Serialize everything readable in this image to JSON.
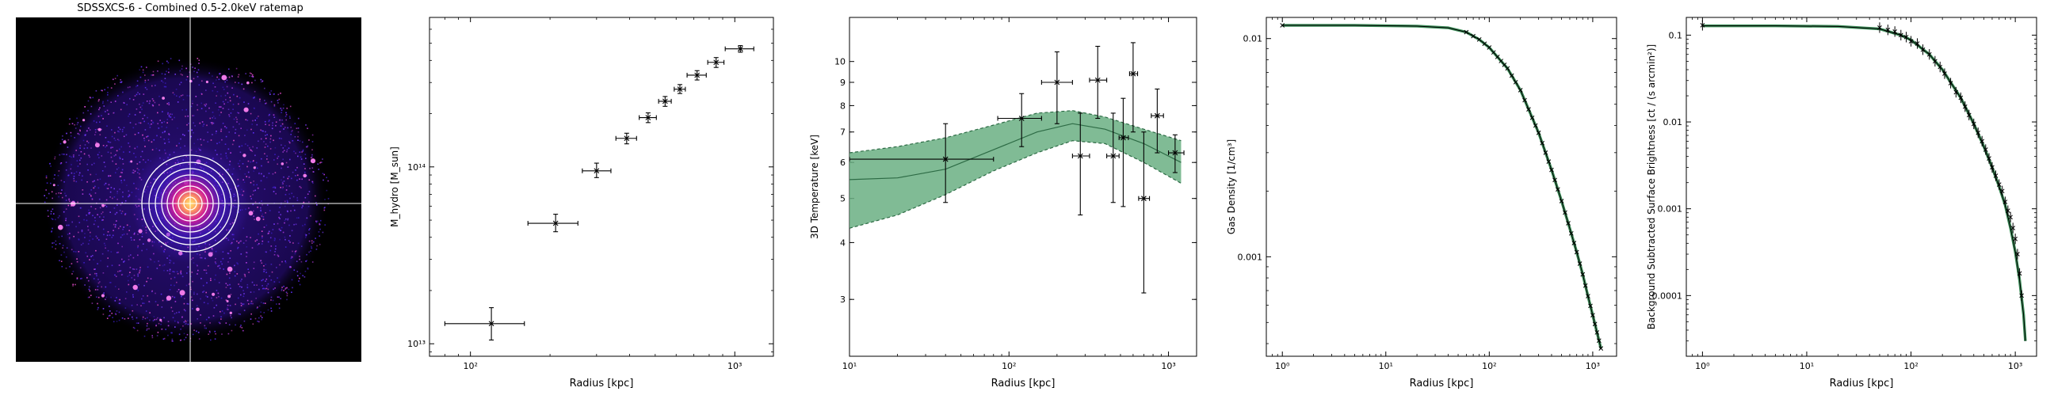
{
  "ratemap": {
    "title": "SDSSXCS-6 - Combined 0.5-2.0keV ratemap",
    "colors": {
      "background": "#000000",
      "crosshair": "#ffffff",
      "rings": "#ffffff",
      "core": "#ffe36e",
      "glow": "#d81e98",
      "diffuse": "#4b1fd8"
    }
  },
  "chart_data": [
    {
      "type": "scatter",
      "title": "",
      "xlabel": "Radius [kpc]",
      "ylabel": "M_hydro [M_sun]",
      "x_scale": "log",
      "y_scale": "log",
      "xlim": [
        70,
        1400
      ],
      "ylim": [
        8500000000000.0,
        700000000000000.0
      ],
      "x_ticks": [
        {
          "v": 100,
          "label": "10²"
        },
        {
          "v": 1000,
          "label": "10³"
        }
      ],
      "y_ticks": [
        {
          "v": 10000000000000.0,
          "label": "10¹³"
        },
        {
          "v": 100000000000000.0,
          "label": "10¹⁴"
        }
      ],
      "points": [
        {
          "x": 120,
          "y": 13000000000000.0,
          "xlo": 80,
          "xhi": 160,
          "ylo": 10500000000000.0,
          "yhi": 16000000000000.0
        },
        {
          "x": 210,
          "y": 48000000000000.0,
          "xlo": 165,
          "xhi": 255,
          "ylo": 43000000000000.0,
          "yhi": 54000000000000.0
        },
        {
          "x": 300,
          "y": 95000000000000.0,
          "xlo": 265,
          "xhi": 340,
          "ylo": 87000000000000.0,
          "yhi": 105000000000000.0
        },
        {
          "x": 390,
          "y": 145000000000000.0,
          "xlo": 355,
          "xhi": 425,
          "ylo": 135000000000000.0,
          "yhi": 155000000000000.0
        },
        {
          "x": 470,
          "y": 190000000000000.0,
          "xlo": 435,
          "xhi": 505,
          "ylo": 178000000000000.0,
          "yhi": 202000000000000.0
        },
        {
          "x": 545,
          "y": 235000000000000.0,
          "xlo": 515,
          "xhi": 575,
          "ylo": 220000000000000.0,
          "yhi": 250000000000000.0
        },
        {
          "x": 620,
          "y": 275000000000000.0,
          "xlo": 590,
          "xhi": 650,
          "ylo": 260000000000000.0,
          "yhi": 292000000000000.0
        },
        {
          "x": 720,
          "y": 330000000000000.0,
          "xlo": 660,
          "xhi": 780,
          "ylo": 310000000000000.0,
          "yhi": 350000000000000.0
        },
        {
          "x": 850,
          "y": 390000000000000.0,
          "xlo": 790,
          "xhi": 910,
          "ylo": 365000000000000.0,
          "yhi": 415000000000000.0
        },
        {
          "x": 1050,
          "y": 465000000000000.0,
          "xlo": 920,
          "xhi": 1180,
          "ylo": 445000000000000.0,
          "yhi": 485000000000000.0
        }
      ]
    },
    {
      "type": "line",
      "title": "",
      "xlabel": "Radius [kpc]",
      "ylabel": "3D Temperature [keV]",
      "x_scale": "log",
      "y_scale": "log",
      "xlim": [
        10,
        1500
      ],
      "ylim": [
        2.25,
        12.5
      ],
      "x_ticks": [
        {
          "v": 10,
          "label": "10¹"
        },
        {
          "v": 100,
          "label": "10²"
        },
        {
          "v": 1000,
          "label": "10³"
        }
      ],
      "y_ticks": [
        {
          "v": 3,
          "label": "3"
        },
        {
          "v": 4,
          "label": "4"
        },
        {
          "v": 5,
          "label": "5"
        },
        {
          "v": 6,
          "label": "6"
        },
        {
          "v": 7,
          "label": "7"
        },
        {
          "v": 8,
          "label": "8"
        },
        {
          "v": 9,
          "label": "9"
        },
        {
          "v": 10,
          "label": "10"
        }
      ],
      "band_color": "#6aaf82",
      "model": {
        "x": [
          10,
          20,
          40,
          80,
          150,
          250,
          400,
          700,
          1200
        ],
        "y": [
          5.5,
          5.55,
          5.8,
          6.4,
          7.0,
          7.3,
          7.1,
          6.6,
          6.0
        ],
        "upper": [
          6.3,
          6.5,
          6.8,
          7.25,
          7.7,
          7.8,
          7.55,
          7.1,
          6.7
        ],
        "lower": [
          4.3,
          4.6,
          5.1,
          5.75,
          6.3,
          6.7,
          6.6,
          6.0,
          5.4
        ]
      },
      "points": [
        {
          "x": 40,
          "y": 6.1,
          "xlo": 10,
          "xhi": 80,
          "ylo": 4.9,
          "yhi": 7.3
        },
        {
          "x": 120,
          "y": 7.5,
          "xlo": 85,
          "xhi": 160,
          "ylo": 6.5,
          "yhi": 8.5
        },
        {
          "x": 200,
          "y": 9.0,
          "xlo": 160,
          "xhi": 250,
          "ylo": 7.3,
          "yhi": 10.5
        },
        {
          "x": 280,
          "y": 6.2,
          "xlo": 250,
          "xhi": 320,
          "ylo": 4.6,
          "yhi": 7.7
        },
        {
          "x": 360,
          "y": 9.1,
          "xlo": 320,
          "xhi": 410,
          "ylo": 7.5,
          "yhi": 10.8
        },
        {
          "x": 450,
          "y": 6.2,
          "xlo": 410,
          "xhi": 490,
          "ylo": 4.9,
          "yhi": 7.7
        },
        {
          "x": 520,
          "y": 6.8,
          "xlo": 490,
          "xhi": 560,
          "ylo": 4.8,
          "yhi": 8.3
        },
        {
          "x": 600,
          "y": 9.4,
          "xlo": 570,
          "xhi": 640,
          "ylo": 7.0,
          "yhi": 11.0
        },
        {
          "x": 700,
          "y": 5.0,
          "xlo": 650,
          "xhi": 760,
          "ylo": 3.1,
          "yhi": 7.0
        },
        {
          "x": 850,
          "y": 7.6,
          "xlo": 780,
          "xhi": 930,
          "ylo": 6.3,
          "yhi": 8.7
        },
        {
          "x": 1100,
          "y": 6.3,
          "xlo": 1000,
          "xhi": 1250,
          "ylo": 5.7,
          "yhi": 6.9
        }
      ]
    },
    {
      "type": "line",
      "title": "",
      "xlabel": "Radius [kpc]",
      "ylabel": "Gas Density",
      "ylabel_unit": "1/cm³",
      "x_scale": "log",
      "y_scale": "log",
      "xlim": [
        0.7,
        1700
      ],
      "ylim": 0.00035,
      "ylim_top": 0.0125,
      "x_ticks": [
        {
          "v": 1,
          "label": "10⁰"
        },
        {
          "v": 10,
          "label": "10¹"
        },
        {
          "v": 100,
          "label": "10²"
        },
        {
          "v": 1000,
          "label": "10³"
        }
      ],
      "y_ticks": [
        {
          "v": 0.01,
          "label": "0.01"
        },
        {
          "v": 0.001,
          "label": "0.001"
        }
      ],
      "band_color": "#3d8f5a",
      "model": {
        "x": [
          1,
          5,
          20,
          40,
          60,
          80,
          100,
          150,
          200,
          300,
          400,
          500,
          600,
          700,
          800,
          900,
          1000,
          1100,
          1200
        ],
        "y": [
          0.0115,
          0.0115,
          0.0114,
          0.0112,
          0.0107,
          0.0099,
          0.0091,
          0.0073,
          0.0058,
          0.0037,
          0.0025,
          0.0018,
          0.00135,
          0.00105,
          0.00083,
          0.00066,
          0.00054,
          0.00045,
          0.00038
        ]
      },
      "marker_x": [
        1,
        60,
        70,
        80,
        90,
        100,
        110,
        120,
        130,
        140,
        150,
        165,
        180,
        200,
        220,
        240,
        260,
        280,
        300,
        325,
        350,
        375,
        400,
        430,
        460,
        500,
        540,
        580,
        620,
        660,
        700,
        750,
        800,
        850,
        900,
        950,
        1000,
        1050,
        1100,
        1150,
        1200
      ]
    },
    {
      "type": "line",
      "title": "",
      "xlabel": "Radius [kpc]",
      "ylabel": "Background Subtracted Surface Brightness",
      "ylabel_unit": "ct / (s arcmin²)",
      "x_scale": "log",
      "y_scale": "log",
      "xlim": [
        0.7,
        1600
      ],
      "ylim": [
        2e-05,
        0.16
      ],
      "x_ticks": [
        {
          "v": 1,
          "label": "10⁰"
        },
        {
          "v": 10,
          "label": "10¹"
        },
        {
          "v": 100,
          "label": "10²"
        },
        {
          "v": 1000,
          "label": "10³"
        }
      ],
      "y_ticks": [
        {
          "v": 0.1,
          "label": "0.1"
        },
        {
          "v": 0.01,
          "label": "0.01"
        },
        {
          "v": 0.001,
          "label": "0.001"
        },
        {
          "v": 0.0001,
          "label": "0.0001"
        }
      ],
      "band_color": "#3d8f5a",
      "model": {
        "x": [
          1,
          5,
          20,
          50,
          80,
          100,
          150,
          200,
          300,
          400,
          500,
          600,
          700,
          800,
          900,
          1000,
          1100,
          1200,
          1250
        ],
        "y": [
          0.128,
          0.128,
          0.126,
          0.118,
          0.1,
          0.088,
          0.06,
          0.04,
          0.019,
          0.0095,
          0.0052,
          0.003,
          0.0018,
          0.0011,
          0.0006,
          0.00032,
          0.00015,
          6e-05,
          3e-05
        ]
      },
      "points": [
        {
          "x": 1,
          "y": 0.13
        },
        {
          "x": 50,
          "y": 0.122
        },
        {
          "x": 60,
          "y": 0.115
        },
        {
          "x": 70,
          "y": 0.11
        },
        {
          "x": 80,
          "y": 0.1
        },
        {
          "x": 90,
          "y": 0.095
        },
        {
          "x": 100,
          "y": 0.085
        },
        {
          "x": 115,
          "y": 0.08
        },
        {
          "x": 130,
          "y": 0.068
        },
        {
          "x": 150,
          "y": 0.06
        },
        {
          "x": 170,
          "y": 0.05
        },
        {
          "x": 190,
          "y": 0.043
        },
        {
          "x": 210,
          "y": 0.036
        },
        {
          "x": 240,
          "y": 0.028
        },
        {
          "x": 270,
          "y": 0.022
        },
        {
          "x": 300,
          "y": 0.019
        },
        {
          "x": 330,
          "y": 0.015
        },
        {
          "x": 360,
          "y": 0.012
        },
        {
          "x": 400,
          "y": 0.0095
        },
        {
          "x": 440,
          "y": 0.0075
        },
        {
          "x": 480,
          "y": 0.006
        },
        {
          "x": 520,
          "y": 0.0048
        },
        {
          "x": 560,
          "y": 0.0038
        },
        {
          "x": 600,
          "y": 0.003
        },
        {
          "x": 650,
          "y": 0.0024
        },
        {
          "x": 700,
          "y": 0.0019
        },
        {
          "x": 750,
          "y": 0.0016
        },
        {
          "x": 800,
          "y": 0.0012
        },
        {
          "x": 850,
          "y": 0.00095
        },
        {
          "x": 900,
          "y": 0.0008
        },
        {
          "x": 950,
          "y": 0.0006
        },
        {
          "x": 1000,
          "y": 0.00045
        },
        {
          "x": 1050,
          "y": 0.0003
        },
        {
          "x": 1100,
          "y": 0.00018
        },
        {
          "x": 1150,
          "y": 0.0001
        }
      ]
    }
  ]
}
